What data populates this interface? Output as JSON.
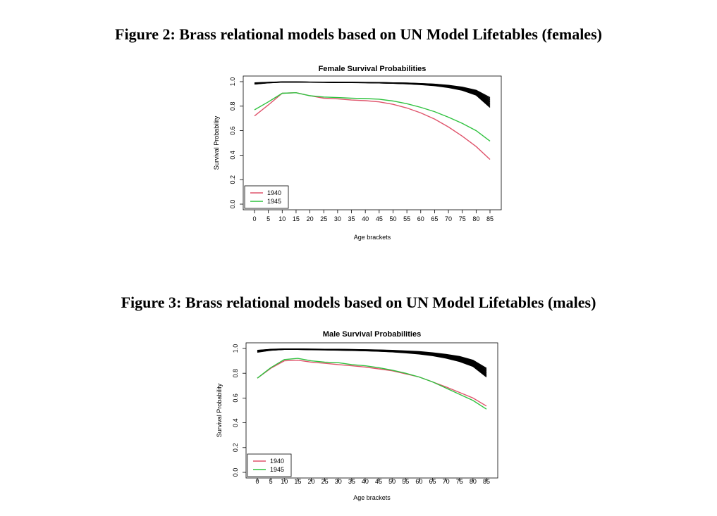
{
  "figures": [
    {
      "caption": "Figure 2: Brass relational models based on UN Model Lifetables (females)"
    },
    {
      "caption": "Figure 3: Brass relational models based on UN Model Lifetables (males)"
    }
  ],
  "colors": {
    "model_lines": "#000000",
    "series_1940": "#DF536B",
    "series_1945": "#2FC23F"
  },
  "chart_data": [
    {
      "type": "line",
      "title": "Female Survival Probabilities",
      "xlabel": "Age brackets",
      "ylabel": "Survival Probability",
      "x": [
        0,
        5,
        10,
        15,
        20,
        25,
        30,
        35,
        40,
        45,
        50,
        55,
        60,
        65,
        70,
        75,
        80,
        85
      ],
      "xticks": [
        "0",
        "5",
        "10",
        "15",
        "20",
        "25",
        "30",
        "35",
        "40",
        "45",
        "50",
        "55",
        "60",
        "65",
        "70",
        "75",
        "80",
        "85"
      ],
      "yticks": [
        "0.0",
        "0.2",
        "0.4",
        "0.6",
        "0.8",
        "1.0"
      ],
      "ylim": [
        0,
        1
      ],
      "grid": false,
      "legend_position": "bottom-left",
      "model_band": {
        "count": 10,
        "upper": [
          0.99,
          0.995,
          0.998,
          0.998,
          0.997,
          0.996,
          0.995,
          0.995,
          0.994,
          0.993,
          0.991,
          0.989,
          0.985,
          0.98,
          0.97,
          0.955,
          0.93,
          0.87
        ],
        "lower": [
          0.98,
          0.99,
          0.996,
          0.996,
          0.995,
          0.994,
          0.993,
          0.992,
          0.991,
          0.989,
          0.986,
          0.982,
          0.976,
          0.967,
          0.952,
          0.93,
          0.89,
          0.79
        ]
      },
      "series": [
        {
          "name": "1940",
          "values": [
            0.72,
            0.81,
            0.905,
            0.91,
            0.885,
            0.865,
            0.86,
            0.85,
            0.845,
            0.835,
            0.815,
            0.785,
            0.745,
            0.695,
            0.63,
            0.555,
            0.47,
            0.365
          ]
        },
        {
          "name": "1945",
          "values": [
            0.77,
            0.835,
            0.905,
            0.91,
            0.885,
            0.875,
            0.87,
            0.865,
            0.862,
            0.857,
            0.842,
            0.82,
            0.79,
            0.755,
            0.71,
            0.66,
            0.6,
            0.515
          ]
        }
      ]
    },
    {
      "type": "line",
      "title": "Male Survival Probabilities",
      "xlabel": "Age brackets",
      "ylabel": "Survival Probability",
      "x": [
        0,
        5,
        10,
        15,
        20,
        25,
        30,
        35,
        40,
        45,
        50,
        55,
        60,
        65,
        70,
        75,
        80,
        85
      ],
      "xticks": [
        "0",
        "5",
        "10",
        "15",
        "20",
        "25",
        "30",
        "35",
        "40",
        "45",
        "50",
        "55",
        "60",
        "65",
        "70",
        "75",
        "80",
        "85"
      ],
      "yticks": [
        "0.0",
        "0.2",
        "0.4",
        "0.6",
        "0.8",
        "1.0"
      ],
      "ylim": [
        0,
        1
      ],
      "grid": false,
      "legend_position": "bottom-left",
      "model_band": {
        "count": 10,
        "upper": [
          0.985,
          0.993,
          0.996,
          0.996,
          0.995,
          0.994,
          0.993,
          0.992,
          0.99,
          0.988,
          0.985,
          0.98,
          0.975,
          0.965,
          0.952,
          0.935,
          0.905,
          0.84
        ],
        "lower": [
          0.97,
          0.985,
          0.992,
          0.992,
          0.99,
          0.988,
          0.986,
          0.984,
          0.981,
          0.977,
          0.972,
          0.965,
          0.955,
          0.942,
          0.922,
          0.895,
          0.855,
          0.77
        ]
      },
      "series": [
        {
          "name": "1940",
          "values": [
            0.76,
            0.84,
            0.9,
            0.905,
            0.89,
            0.88,
            0.87,
            0.86,
            0.85,
            0.835,
            0.82,
            0.795,
            0.77,
            0.73,
            0.69,
            0.645,
            0.6,
            0.535
          ]
        },
        {
          "name": "1945",
          "values": [
            0.76,
            0.845,
            0.91,
            0.92,
            0.9,
            0.89,
            0.885,
            0.87,
            0.86,
            0.845,
            0.825,
            0.8,
            0.77,
            0.73,
            0.68,
            0.63,
            0.58,
            0.51
          ]
        }
      ]
    }
  ]
}
